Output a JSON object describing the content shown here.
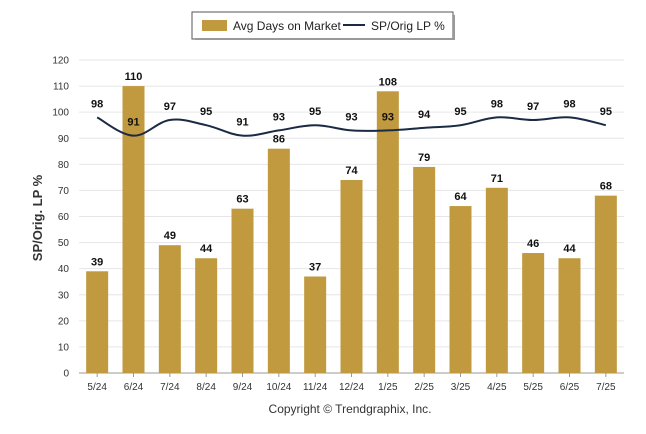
{
  "chart_data": {
    "type": "bar",
    "categories": [
      "5/24",
      "6/24",
      "7/24",
      "8/24",
      "9/24",
      "10/24",
      "11/24",
      "12/24",
      "1/25",
      "2/25",
      "3/25",
      "4/25",
      "5/25",
      "6/25",
      "7/25"
    ],
    "series": [
      {
        "name": "Avg Days on Market",
        "type": "bar",
        "color": "#C19A3F",
        "values": [
          39,
          110,
          49,
          44,
          63,
          86,
          37,
          74,
          108,
          79,
          64,
          71,
          46,
          44,
          68
        ]
      },
      {
        "name": "SP/Orig LP %",
        "type": "line",
        "color": "#1B2A45",
        "values": [
          98,
          91,
          97,
          95,
          91,
          93,
          95,
          93,
          93,
          94,
          95,
          98,
          97,
          98,
          95
        ]
      }
    ],
    "ylabel": "SP/Orig. LP %",
    "ylim": [
      0,
      120
    ],
    "yticks": [
      0,
      10,
      20,
      30,
      40,
      50,
      60,
      70,
      80,
      90,
      100,
      110,
      120
    ],
    "grid": true,
    "legend_position": "top-center"
  },
  "footer": {
    "copyright": "Copyright © Trendgraphix, Inc."
  }
}
